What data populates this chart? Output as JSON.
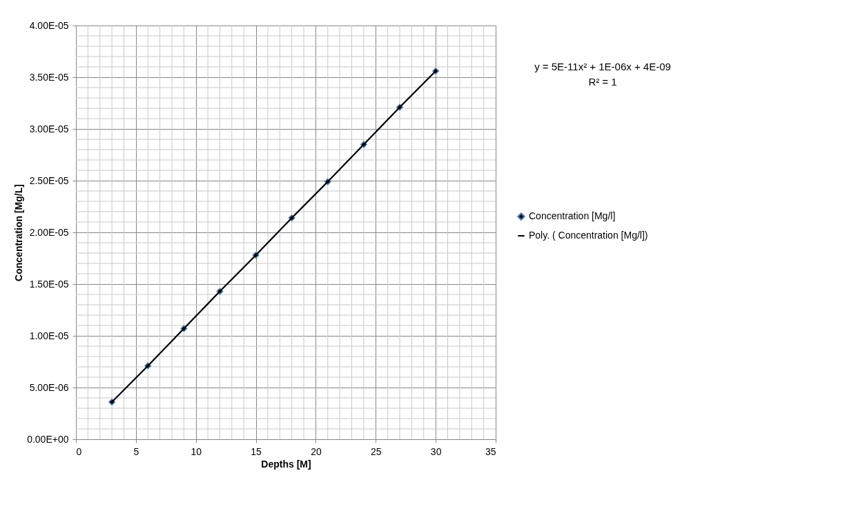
{
  "chart_data": {
    "type": "line",
    "xlabel": "Depths [M]",
    "ylabel": "Concentration [Mg/L]",
    "xlim": [
      0,
      35
    ],
    "xticks": [
      0,
      5,
      10,
      15,
      20,
      25,
      30,
      35
    ],
    "ylim": [
      0,
      4e-05
    ],
    "yticks": [
      {
        "value": 0,
        "label": "0.00E+00"
      },
      {
        "value": 5e-06,
        "label": "5.00E-06"
      },
      {
        "value": 1e-05,
        "label": "1.00E-05"
      },
      {
        "value": 1.5e-05,
        "label": "1.50E-05"
      },
      {
        "value": 2e-05,
        "label": "2.00E-05"
      },
      {
        "value": 2.5e-05,
        "label": "2.50E-05"
      },
      {
        "value": 3e-05,
        "label": "3.00E-05"
      },
      {
        "value": 3.5e-05,
        "label": "3.50E-05"
      },
      {
        "value": 4e-05,
        "label": "4.00E-05"
      }
    ],
    "grid": true,
    "legend": "right",
    "marker": "diamond",
    "line_style": "solid",
    "annotations": [
      "y = 5E-11x² + 1E-06x + 4E-09",
      "R² = 1"
    ],
    "series": [
      {
        "name": "Concentration [Mg/l]",
        "color": "#4a7ebb",
        "x": [
          3,
          6,
          9,
          12,
          15,
          18,
          21,
          24,
          27,
          30
        ],
        "values": [
          3.6e-06,
          7.1e-06,
          1.07e-05,
          1.43e-05,
          1.78e-05,
          2.14e-05,
          2.49e-05,
          2.85e-05,
          3.21e-05,
          3.56e-05
        ]
      },
      {
        "name": "Poly. ( Concentration [Mg/l])",
        "color": "#000000",
        "marker": "none",
        "x": [
          3,
          6,
          9,
          12,
          15,
          18,
          21,
          24,
          27,
          30
        ],
        "values": [
          3.6e-06,
          7.1e-06,
          1.07e-05,
          1.43e-05,
          1.78e-05,
          2.14e-05,
          2.49e-05,
          2.85e-05,
          3.21e-05,
          3.56e-05
        ]
      }
    ]
  }
}
